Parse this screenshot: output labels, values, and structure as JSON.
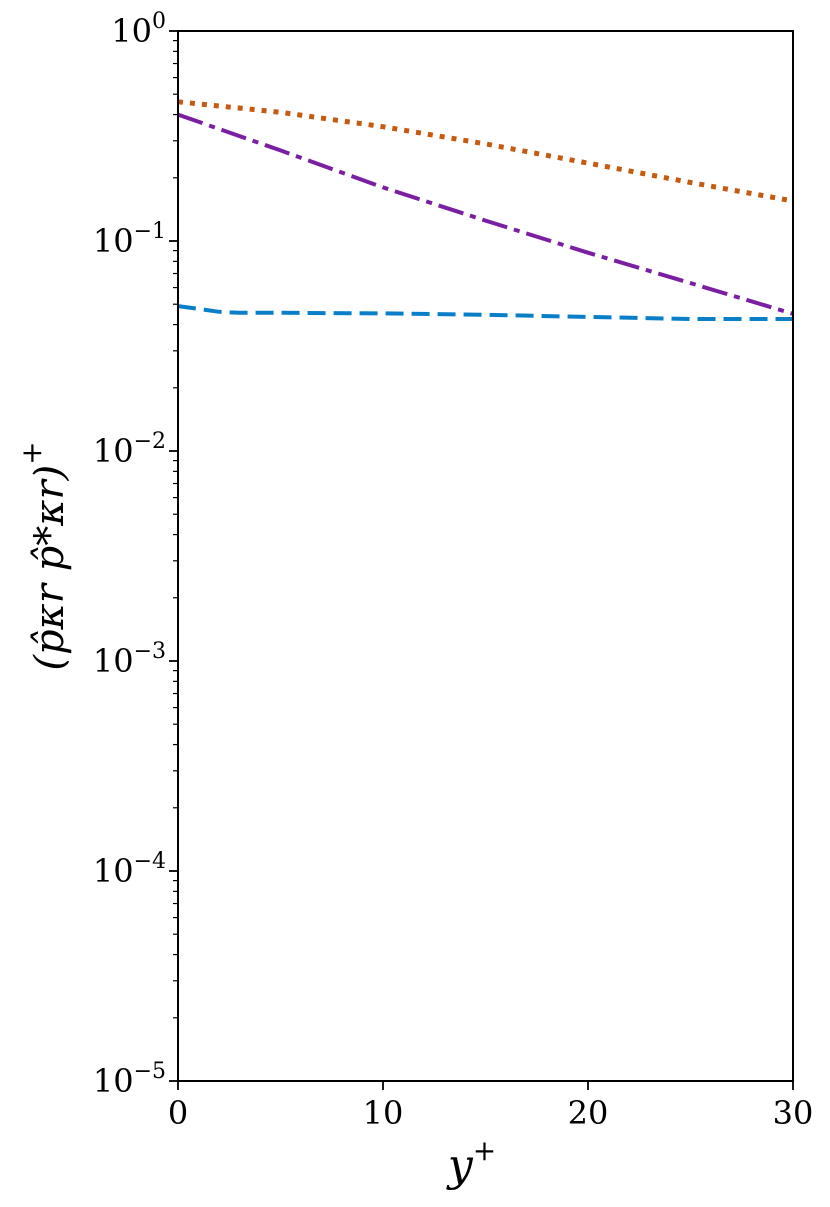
{
  "chart_data": {
    "type": "line",
    "title": "",
    "xlabel": "y",
    "xlabel_sup": "+",
    "ylabel": "(p̂κr p̂*κr)",
    "ylabel_sup": "+",
    "xlim": [
      0,
      30
    ],
    "ylim": [
      1e-05,
      1
    ],
    "yscale": "log",
    "grid": false,
    "x_ticks": [
      0,
      10,
      20,
      30
    ],
    "x_tick_labels": [
      "0",
      "10",
      "20",
      "30"
    ],
    "y_ticks": [
      {
        "value": 1,
        "base": "10",
        "exp": "0"
      },
      {
        "value": 0.1,
        "base": "10",
        "exp": "−1"
      },
      {
        "value": 0.01,
        "base": "10",
        "exp": "−2"
      },
      {
        "value": 0.001,
        "base": "10",
        "exp": "−3"
      },
      {
        "value": 0.0001,
        "base": "10",
        "exp": "−4"
      },
      {
        "value": 1e-05,
        "base": "10",
        "exp": "−5"
      }
    ],
    "series": [
      {
        "color": "#c55a11",
        "style": "dotted",
        "x": [
          0,
          5,
          10,
          15,
          20,
          25,
          30
        ],
        "y": [
          0.46,
          0.41,
          0.35,
          0.29,
          0.235,
          0.19,
          0.155
        ]
      },
      {
        "color": "#7b1fa2",
        "style": "dashdot",
        "x": [
          0,
          5,
          10,
          15,
          20,
          25,
          30
        ],
        "y": [
          0.4,
          0.27,
          0.18,
          0.125,
          0.088,
          0.063,
          0.045
        ]
      },
      {
        "color": "#0a7fc8",
        "style": "dashed",
        "x": [
          0,
          1,
          2,
          3,
          5,
          10,
          15,
          20,
          25,
          30
        ],
        "y": [
          0.049,
          0.0475,
          0.046,
          0.0455,
          0.0455,
          0.0452,
          0.0445,
          0.0435,
          0.0425,
          0.0425
        ]
      }
    ]
  }
}
